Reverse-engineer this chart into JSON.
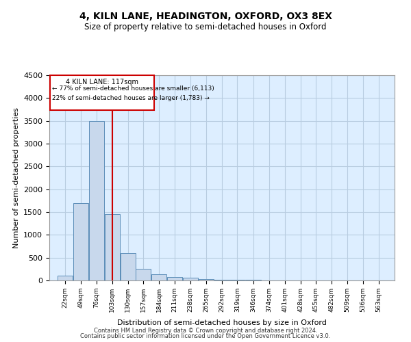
{
  "title": "4, KILN LANE, HEADINGTON, OXFORD, OX3 8EX",
  "subtitle": "Size of property relative to semi-detached houses in Oxford",
  "xlabel": "Distribution of semi-detached houses by size in Oxford",
  "ylabel": "Number of semi-detached properties",
  "footer_line1": "Contains HM Land Registry data © Crown copyright and database right 2024.",
  "footer_line2": "Contains public sector information licensed under the Open Government Licence v3.0.",
  "bar_color": "#c8d8ec",
  "bar_edge_color": "#5b8db8",
  "grid_color": "#b8cce0",
  "background_color": "#ddeeff",
  "vline_color": "#cc0000",
  "vline_x": 117,
  "annotation_title": "4 KILN LANE: 117sqm",
  "annotation_line1": "← 77% of semi-detached houses are smaller (6,113)",
  "annotation_line2": "22% of semi-detached houses are larger (1,783) →",
  "bin_labels": [
    "22sqm",
    "49sqm",
    "76sqm",
    "103sqm",
    "130sqm",
    "157sqm",
    "184sqm",
    "211sqm",
    "238sqm",
    "265sqm",
    "292sqm",
    "319sqm",
    "346sqm",
    "374sqm",
    "401sqm",
    "428sqm",
    "455sqm",
    "482sqm",
    "509sqm",
    "536sqm",
    "563sqm"
  ],
  "bin_edges": [
    22,
    49,
    76,
    103,
    130,
    157,
    184,
    211,
    238,
    265,
    292,
    319,
    346,
    374,
    401,
    428,
    455,
    482,
    509,
    536,
    563,
    590
  ],
  "bar_heights": [
    100,
    1700,
    3500,
    1450,
    600,
    260,
    140,
    80,
    60,
    35,
    20,
    15,
    10,
    5,
    5,
    5,
    2,
    2,
    2,
    2,
    2
  ],
  "ylim": [
    0,
    4500
  ],
  "yticks": [
    0,
    500,
    1000,
    1500,
    2000,
    2500,
    3000,
    3500,
    4000,
    4500
  ]
}
